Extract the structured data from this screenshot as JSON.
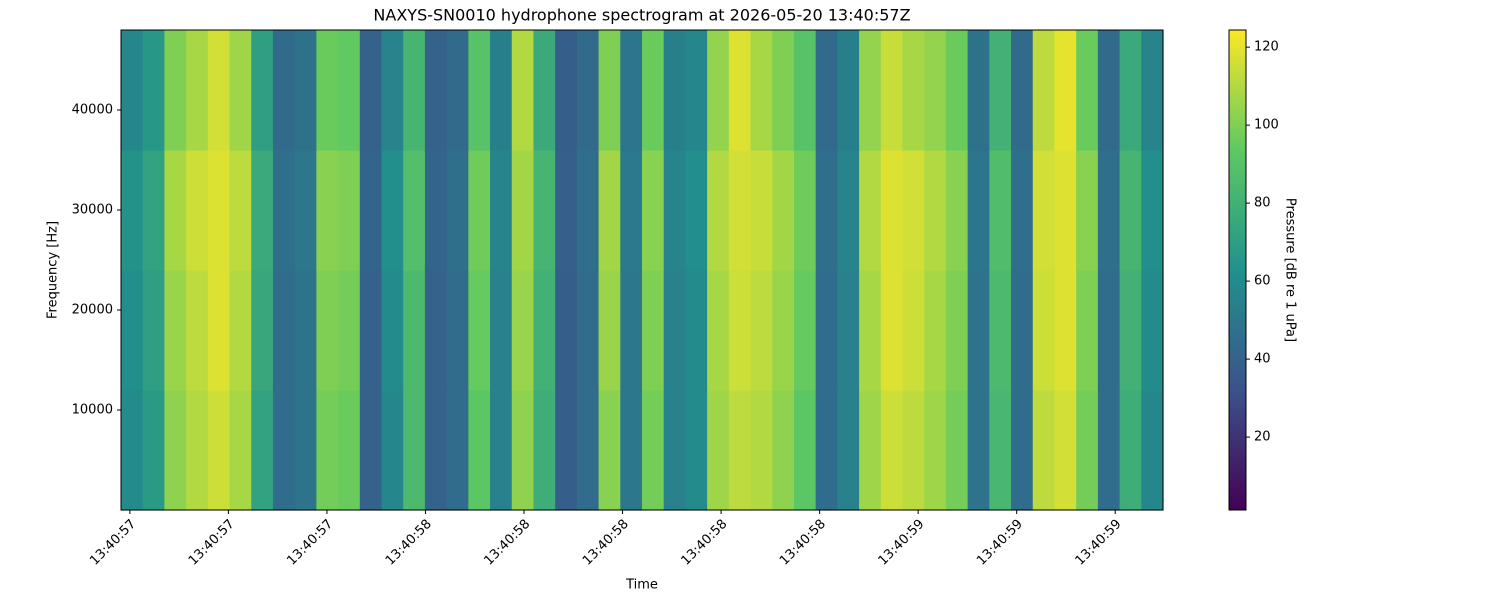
{
  "chart_data": {
    "type": "heatmap",
    "title": "NAXYS-SN0010 hydrophone spectrogram at 2026-05-20 13:40:57Z",
    "x_label": "Time",
    "y_label": "Frequency [Hz]",
    "colorbar_label": "Pressure [dB re 1 uPa]",
    "colormap": "viridis",
    "xlim": [
      57.482,
      59.597
    ],
    "xticks": [
      {
        "value": 57.5,
        "label": "13:40:57"
      },
      {
        "value": 57.7,
        "label": "13:40:57"
      },
      {
        "value": 57.9,
        "label": "13:40:57"
      },
      {
        "value": 58.1,
        "label": "13:40:58"
      },
      {
        "value": 58.3,
        "label": "13:40:58"
      },
      {
        "value": 58.5,
        "label": "13:40:58"
      },
      {
        "value": 58.7,
        "label": "13:40:58"
      },
      {
        "value": 58.9,
        "label": "13:40:58"
      },
      {
        "value": 59.1,
        "label": "13:40:59"
      },
      {
        "value": 59.3,
        "label": "13:40:59"
      },
      {
        "value": 59.5,
        "label": "13:40:59"
      }
    ],
    "ylim": [
      0,
      48000
    ],
    "yticks": [
      10000,
      20000,
      30000,
      40000
    ],
    "clim": [
      1.3,
      124.4
    ],
    "cticks": [
      20,
      40,
      60,
      80,
      100,
      120
    ],
    "z": [
      [
        60,
        68,
        103,
        110,
        115,
        108,
        72,
        45,
        48,
        98,
        96,
        40,
        58,
        85,
        40,
        45,
        92,
        55,
        103,
        78,
        38,
        45,
        102,
        50,
        98,
        55,
        60,
        106,
        112,
        110,
        103,
        92,
        45,
        55,
        106,
        115,
        112,
        106,
        98,
        48,
        83,
        45,
        112,
        116,
        98,
        45,
        78,
        58
      ],
      [
        62,
        70,
        105,
        112,
        118,
        110,
        75,
        45,
        48,
        100,
        98,
        40,
        60,
        85,
        40,
        45,
        95,
        55,
        105,
        80,
        38,
        45,
        105,
        50,
        100,
        55,
        60,
        108,
        115,
        112,
        105,
        95,
        45,
        55,
        108,
        118,
        115,
        108,
        100,
        48,
        85,
        45,
        115,
        118,
        100,
        45,
        80,
        60
      ],
      [
        64,
        72,
        108,
        115,
        118,
        112,
        76,
        46,
        50,
        102,
        100,
        41,
        62,
        88,
        41,
        46,
        97,
        56,
        107,
        82,
        39,
        46,
        107,
        51,
        102,
        56,
        62,
        110,
        116,
        114,
        107,
        97,
        46,
        56,
        110,
        118,
        116,
        110,
        102,
        49,
        87,
        46,
        116,
        118,
        102,
        46,
        82,
        62
      ],
      [
        58,
        66,
        100,
        108,
        116,
        106,
        70,
        44,
        47,
        96,
        94,
        40,
        56,
        82,
        40,
        44,
        90,
        54,
        110,
        76,
        38,
        44,
        100,
        49,
        96,
        54,
        58,
        104,
        118,
        108,
        100,
        90,
        44,
        54,
        104,
        114,
        108,
        104,
        96,
        47,
        80,
        44,
        112,
        120,
        96,
        44,
        76,
        56
      ]
    ]
  }
}
